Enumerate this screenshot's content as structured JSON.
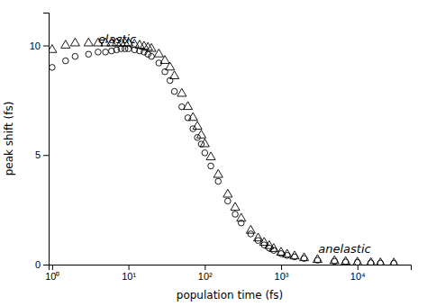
{
  "chart_data": {
    "type": "scatter",
    "xlabel": "population time (fs)",
    "ylabel": "peak shift (fs)",
    "log": "x",
    "grid": false,
    "xlim": [
      0.9,
      50000
    ],
    "ylim": [
      0,
      11.5
    ],
    "xticks": [
      {
        "value": 1,
        "label": "10⁰"
      },
      {
        "value": 10,
        "label": "10¹"
      },
      {
        "value": 100,
        "label": "10²"
      },
      {
        "value": 1000,
        "label": "10³"
      },
      {
        "value": 10000,
        "label": "10⁴"
      }
    ],
    "yticks": [
      0,
      5,
      10
    ],
    "x": [
      1,
      1.5,
      2,
      3,
      4,
      5,
      6,
      7,
      8,
      9,
      10,
      12,
      14,
      16,
      18,
      20,
      25,
      30,
      35,
      40,
      50,
      60,
      70,
      80,
      90,
      100,
      120,
      150,
      200,
      250,
      300,
      400,
      500,
      600,
      700,
      800,
      1000,
      1200,
      1500,
      2000,
      3000,
      5000,
      7000,
      10000,
      15000,
      20000,
      30000
    ],
    "series": [
      {
        "marker": "circle",
        "color": "black",
        "values": [
          9.0,
          9.3,
          9.5,
          9.6,
          9.7,
          9.7,
          9.75,
          9.8,
          9.85,
          9.85,
          9.85,
          9.8,
          9.75,
          9.7,
          9.6,
          9.5,
          9.2,
          8.8,
          8.4,
          7.9,
          7.2,
          6.7,
          6.2,
          5.8,
          5.5,
          5.1,
          4.5,
          3.8,
          2.9,
          2.3,
          1.9,
          1.4,
          1.1,
          0.9,
          0.75,
          0.65,
          0.5,
          0.42,
          0.35,
          0.28,
          0.2,
          0.15,
          0.12,
          0.1,
          0.08,
          0.07,
          0.06
        ]
      },
      {
        "marker": "triangle",
        "color": "black",
        "values": [
          9.8,
          10.0,
          10.1,
          10.1,
          10.1,
          10.1,
          10.1,
          10.1,
          10.1,
          10.1,
          10.1,
          10.05,
          10.0,
          9.95,
          9.9,
          9.85,
          9.6,
          9.3,
          9.0,
          8.6,
          7.8,
          7.2,
          6.7,
          6.3,
          5.9,
          5.5,
          4.9,
          4.1,
          3.2,
          2.6,
          2.1,
          1.55,
          1.2,
          1.0,
          0.85,
          0.72,
          0.55,
          0.46,
          0.38,
          0.3,
          0.22,
          0.17,
          0.13,
          0.1,
          0.08,
          0.07,
          0.06
        ]
      }
    ],
    "annotations": [
      {
        "text": "elastic",
        "x": 4.0,
        "y": 10.5
      },
      {
        "text": "anelastic",
        "x": 15000,
        "y": 0.55
      }
    ]
  }
}
